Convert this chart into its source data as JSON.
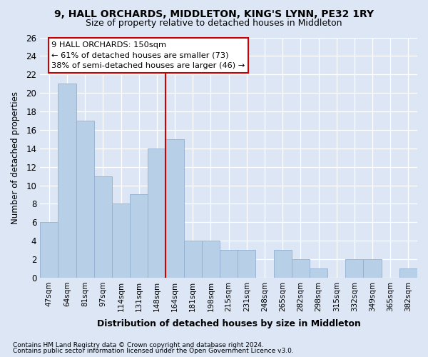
{
  "title": "9, HALL ORCHARDS, MIDDLETON, KING'S LYNN, PE32 1RY",
  "subtitle": "Size of property relative to detached houses in Middleton",
  "xlabel": "Distribution of detached houses by size in Middleton",
  "ylabel": "Number of detached properties",
  "categories": [
    "47sqm",
    "64sqm",
    "81sqm",
    "97sqm",
    "114sqm",
    "131sqm",
    "148sqm",
    "164sqm",
    "181sqm",
    "198sqm",
    "215sqm",
    "231sqm",
    "248sqm",
    "265sqm",
    "282sqm",
    "298sqm",
    "315sqm",
    "332sqm",
    "349sqm",
    "365sqm",
    "382sqm"
  ],
  "values": [
    6,
    21,
    17,
    11,
    8,
    9,
    14,
    15,
    4,
    4,
    3,
    3,
    0,
    3,
    2,
    1,
    0,
    2,
    2,
    0,
    1
  ],
  "bar_color": "#b8cfe8",
  "bar_edgecolor": "#92afd0",
  "reference_line_x": 6.5,
  "reference_line_color": "#cc0000",
  "ylim": [
    0,
    26
  ],
  "yticks": [
    0,
    2,
    4,
    6,
    8,
    10,
    12,
    14,
    16,
    18,
    20,
    22,
    24,
    26
  ],
  "annotation_line1": "9 HALL ORCHARDS: 150sqm",
  "annotation_line2": "← 61% of detached houses are smaller (73)",
  "annotation_line3": "38% of semi-detached houses are larger (46) →",
  "annotation_box_color": "#ffffff",
  "annotation_box_edgecolor": "#cc0000",
  "bg_color": "#dce6f5",
  "footnote1": "Contains HM Land Registry data © Crown copyright and database right 2024.",
  "footnote2": "Contains public sector information licensed under the Open Government Licence v3.0."
}
